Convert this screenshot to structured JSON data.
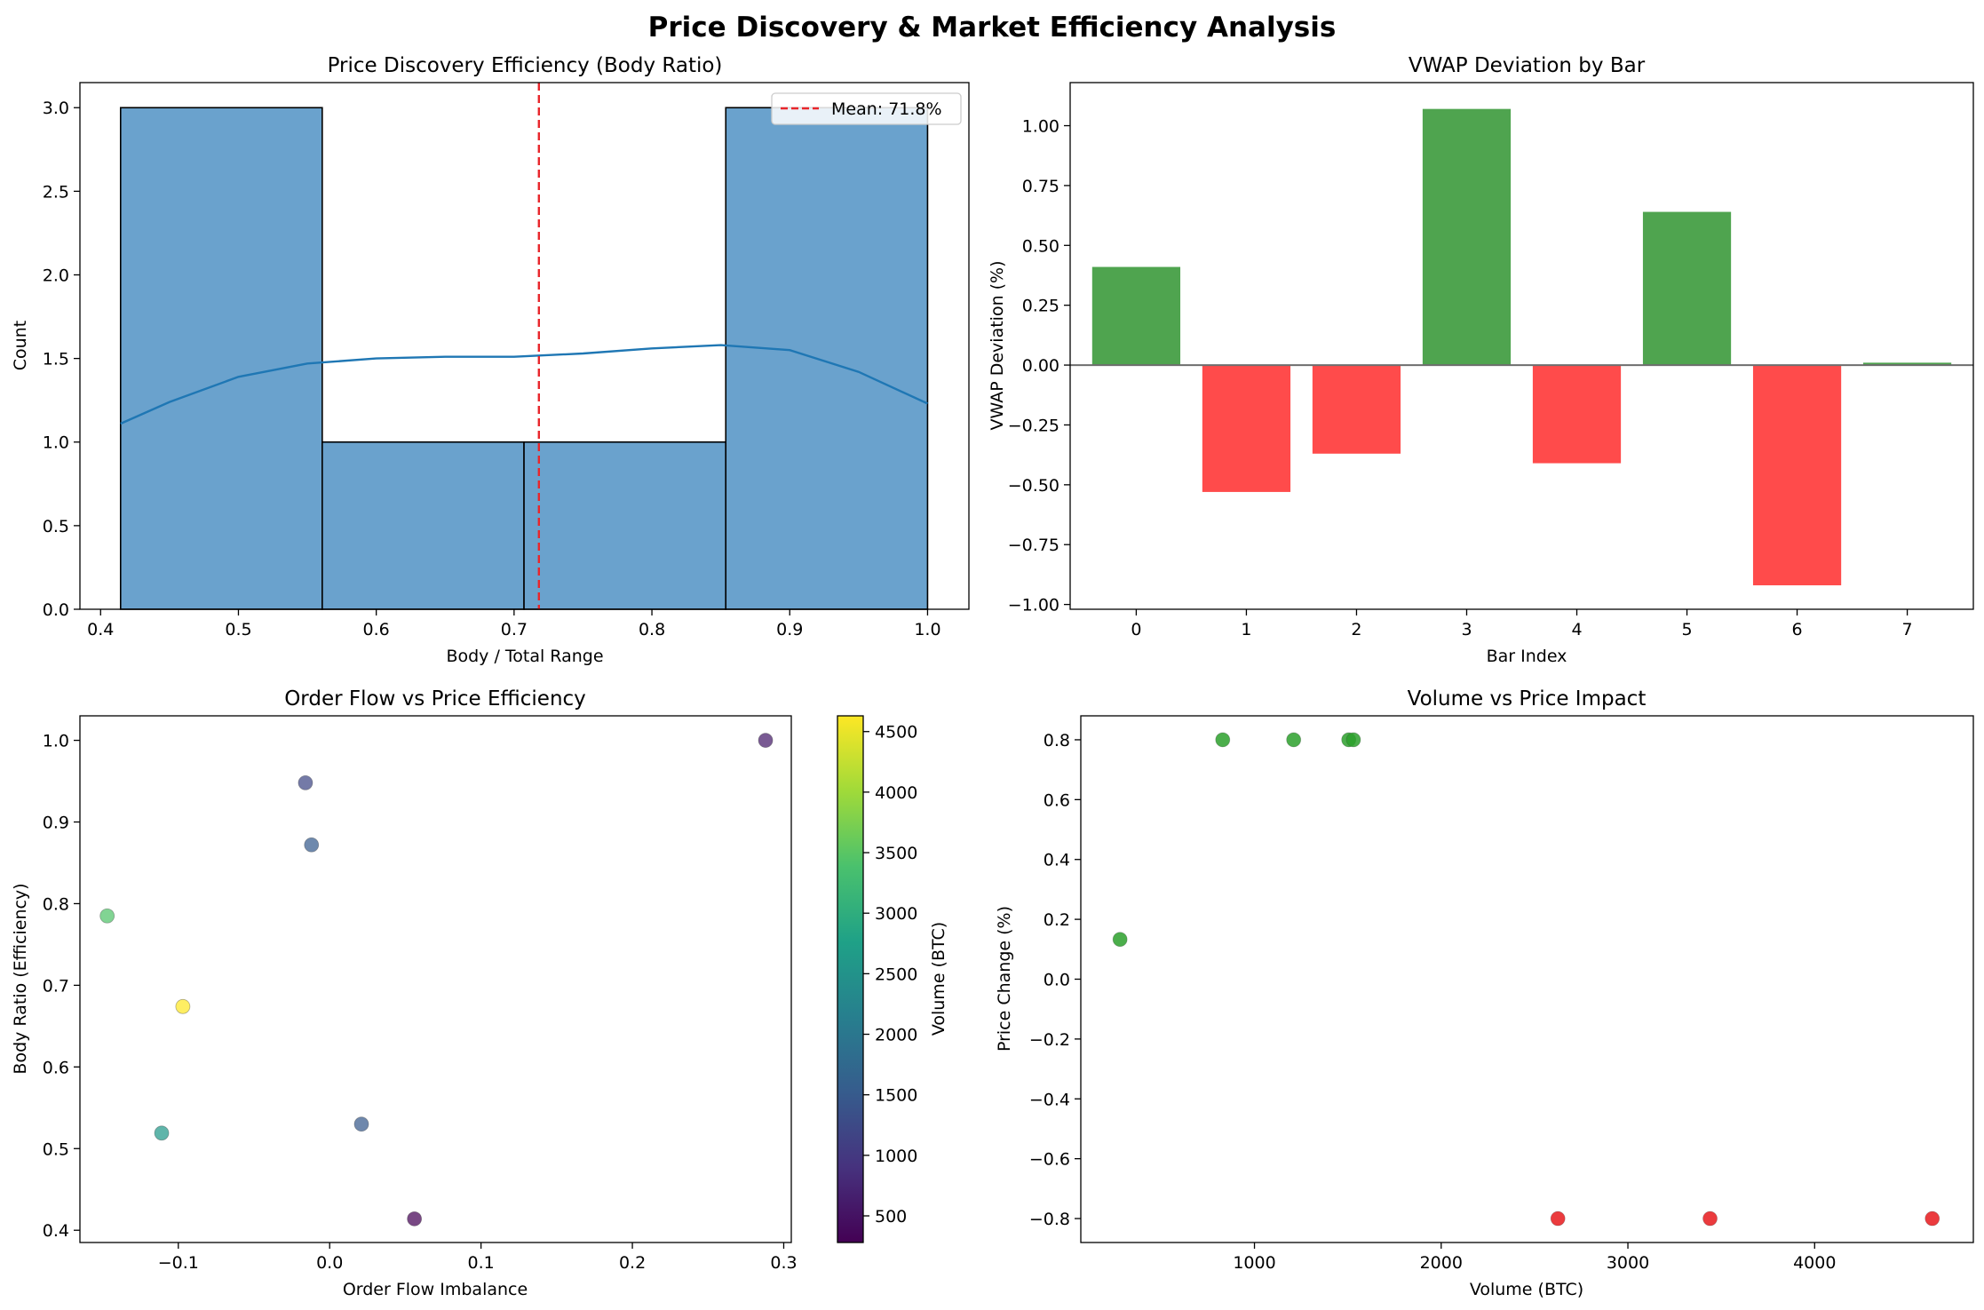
{
  "figure": {
    "suptitle": "Price Discovery & Market Efficiency Analysis"
  },
  "chart_data": [
    {
      "id": "hist",
      "type": "histogram",
      "title": "Price Discovery Efficiency (Body Ratio)",
      "xlabel": "Body / Total Range",
      "ylabel": "Count",
      "xlim": [
        0.385,
        1.03
      ],
      "ylim": [
        0,
        3.15
      ],
      "xticks": [
        0.4,
        0.5,
        0.6,
        0.7,
        0.8,
        0.9,
        1.0
      ],
      "xtick_labels": [
        "0.4",
        "0.5",
        "0.6",
        "0.7",
        "0.8",
        "0.9",
        "1.0"
      ],
      "yticks": [
        0.0,
        0.5,
        1.0,
        1.5,
        2.0,
        2.5,
        3.0
      ],
      "ytick_labels": [
        "0.0",
        "0.5",
        "1.0",
        "1.5",
        "2.0",
        "2.5",
        "3.0"
      ],
      "bins": [
        {
          "x0": 0.4145,
          "x1": 0.5608,
          "count": 3
        },
        {
          "x0": 0.5608,
          "x1": 0.7072,
          "count": 1
        },
        {
          "x0": 0.7072,
          "x1": 0.8536,
          "count": 1
        },
        {
          "x0": 0.8536,
          "x1": 1.0,
          "count": 3
        }
      ],
      "kde": [
        [
          0.4145,
          1.11
        ],
        [
          0.45,
          1.24
        ],
        [
          0.5,
          1.39
        ],
        [
          0.55,
          1.47
        ],
        [
          0.6,
          1.5
        ],
        [
          0.65,
          1.51
        ],
        [
          0.7,
          1.51
        ],
        [
          0.75,
          1.53
        ],
        [
          0.8,
          1.56
        ],
        [
          0.85,
          1.58
        ],
        [
          0.9,
          1.55
        ],
        [
          0.95,
          1.42
        ],
        [
          1.0,
          1.23
        ]
      ],
      "mean_line": {
        "x": 0.718,
        "label": "Mean: 71.8%"
      },
      "bar_color": "#6aa2cd",
      "kde_color": "#1f77b4",
      "mean_color": "#e8262b"
    },
    {
      "id": "vwap",
      "type": "bar",
      "title": "VWAP Deviation by Bar",
      "xlabel": "Bar Index",
      "ylabel": "VWAP Deviation (%)",
      "categories": [
        "0",
        "1",
        "2",
        "3",
        "4",
        "5",
        "6",
        "7"
      ],
      "values": [
        0.41,
        -0.53,
        -0.37,
        1.07,
        -0.41,
        0.64,
        -0.92,
        0.01
      ],
      "xlim": [
        -0.6,
        7.6
      ],
      "ylim": [
        -1.02,
        1.18
      ],
      "yticks": [
        -1.0,
        -0.75,
        -0.5,
        -0.25,
        0.0,
        0.25,
        0.5,
        0.75,
        1.0
      ],
      "ytick_labels": [
        "−1.00",
        "−0.75",
        "−0.50",
        "−0.25",
        "0.00",
        "0.25",
        "0.50",
        "0.75",
        "1.00"
      ],
      "positive_color": "#4fa44f",
      "negative_color": "#ff4b4b"
    },
    {
      "id": "orderflow",
      "type": "scatter",
      "title": "Order Flow vs Price Efficiency",
      "xlabel": "Order Flow Imbalance",
      "ylabel": "Body Ratio (Efficiency)",
      "xlim": [
        -0.165,
        0.305
      ],
      "ylim": [
        0.385,
        1.03
      ],
      "xticks": [
        -0.1,
        0.0,
        0.1,
        0.2,
        0.3
      ],
      "xtick_labels": [
        "−0.1",
        "0.0",
        "0.1",
        "0.2",
        "0.3"
      ],
      "yticks": [
        0.4,
        0.5,
        0.6,
        0.7,
        0.8,
        0.9,
        1.0
      ],
      "ytick_labels": [
        "0.4",
        "0.5",
        "0.6",
        "0.7",
        "0.8",
        "0.9",
        "1.0"
      ],
      "points": [
        {
          "x": 0.288,
          "y": 1.0,
          "v": 600
        },
        {
          "x": -0.016,
          "y": 0.948,
          "v": 1210
        },
        {
          "x": -0.012,
          "y": 0.872,
          "v": 1520
        },
        {
          "x": -0.147,
          "y": 0.785,
          "v": 3440
        },
        {
          "x": -0.097,
          "y": 0.674,
          "v": 4630
        },
        {
          "x": -0.111,
          "y": 0.519,
          "v": 2620
        },
        {
          "x": 0.021,
          "y": 0.53,
          "v": 1500
        },
        {
          "x": 0.056,
          "y": 0.414,
          "v": 280
        }
      ],
      "colorbar": {
        "label": "Volume (BTC)",
        "min": 280,
        "max": 4630,
        "ticks": [
          500,
          1000,
          1500,
          2000,
          2500,
          3000,
          3500,
          4000,
          4500
        ],
        "tick_labels": [
          "500",
          "1000",
          "1500",
          "2000",
          "2500",
          "3000",
          "3500",
          "4000",
          "4500"
        ],
        "colormap": [
          "#440154",
          "#46327e",
          "#365c8d",
          "#277f8e",
          "#1fa187",
          "#4ac16d",
          "#a0da39",
          "#fde725"
        ]
      }
    },
    {
      "id": "volume",
      "type": "scatter",
      "title": "Volume vs Price Impact",
      "xlabel": "Volume (BTC)",
      "ylabel": "Price Change (%)",
      "xlim": [
        70,
        4850
      ],
      "ylim": [
        -0.88,
        0.88
      ],
      "xticks": [
        1000,
        2000,
        3000,
        4000
      ],
      "xtick_labels": [
        "1000",
        "2000",
        "3000",
        "4000"
      ],
      "yticks": [
        -0.8,
        -0.6,
        -0.4,
        -0.2,
        0.0,
        0.2,
        0.4,
        0.6,
        0.8
      ],
      "ytick_labels": [
        "−0.8",
        "−0.6",
        "−0.4",
        "−0.2",
        "0.0",
        "0.2",
        "0.4",
        "0.6",
        "0.8"
      ],
      "points": [
        {
          "x": 280,
          "y": 0.133
        },
        {
          "x": 830,
          "y": 0.8
        },
        {
          "x": 1210,
          "y": 0.8
        },
        {
          "x": 1505,
          "y": 0.8
        },
        {
          "x": 1530,
          "y": 0.8
        },
        {
          "x": 2625,
          "y": -0.8
        },
        {
          "x": 3440,
          "y": -0.8
        },
        {
          "x": 4630,
          "y": -0.8
        }
      ],
      "positive_color": "#2ca02c",
      "negative_color": "#e8191c"
    }
  ]
}
